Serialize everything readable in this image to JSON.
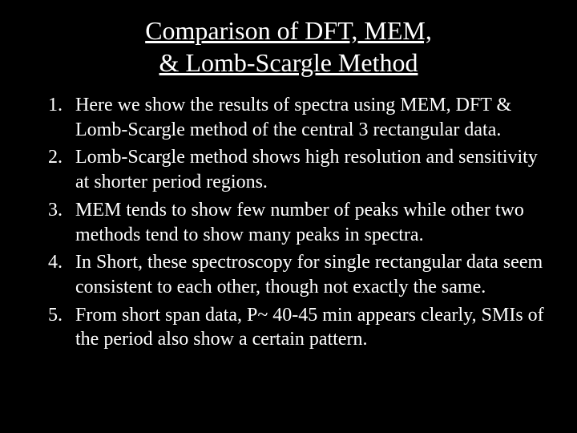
{
  "title_line1": "Comparison of DFT, MEM,",
  "title_line2": "& Lomb-Scargle Method",
  "items": [
    "Here we show the results of spectra using MEM, DFT & Lomb-Scargle method of the central 3 rectangular data.",
    "Lomb-Scargle method shows high resolution and sensitivity at shorter period regions.",
    "MEM tends to show few number of peaks while other two methods tend to show many peaks in spectra.",
    "In Short,  these spectroscopy for single rectangular data seem consistent to each other, though not exactly the same.",
    "From short span data, P~ 40-45 min appears clearly, SMIs of the period also show a certain pattern."
  ],
  "colors": {
    "background": "#000000",
    "text": "#ffffff"
  },
  "typography": {
    "font_family": "Times New Roman",
    "title_fontsize": 32,
    "body_fontsize": 24
  }
}
